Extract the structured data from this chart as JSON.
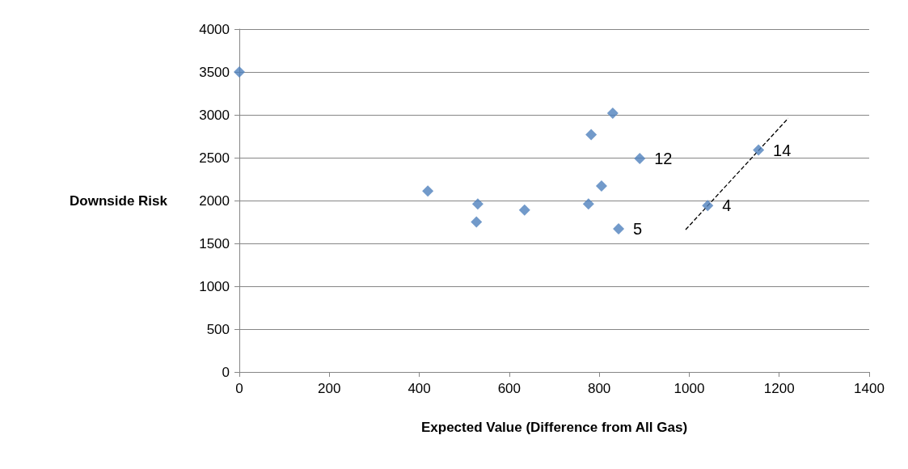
{
  "chart_data": {
    "type": "scatter",
    "xlabel": "Expected Value (Difference from All Gas)",
    "ylabel": "Downside Risk",
    "xlim": [
      0,
      1400
    ],
    "xticks": [
      0,
      200,
      400,
      600,
      800,
      1000,
      1200,
      1400
    ],
    "ylim": [
      0,
      4000
    ],
    "yticks": [
      0,
      500,
      1000,
      1500,
      2000,
      2500,
      3000,
      3500,
      4000
    ],
    "grid": "y",
    "marker": "diamond",
    "series": [
      {
        "color": "#4f81bd",
        "x": [
          0,
          419,
          530,
          527,
          634,
          782,
          830,
          776,
          805,
          843,
          890,
          1041,
          1154
        ],
        "values": [
          3500,
          2110,
          1960,
          1750,
          1890,
          2770,
          3020,
          1960,
          2170,
          1670,
          2490,
          1940,
          2590
        ]
      },
      {
        "type": "line",
        "color": "#000000",
        "line_style": "dashed",
        "marker": "none",
        "x": [
          992,
          1220
        ],
        "values": [
          1660,
          2960
        ]
      }
    ],
    "annotations": [
      {
        "text": "12",
        "x": 890,
        "y": 2490
      },
      {
        "text": "14",
        "x": 1154,
        "y": 2585
      },
      {
        "text": "4",
        "x": 1041,
        "y": 1940
      },
      {
        "text": "5",
        "x": 843,
        "y": 1670
      }
    ]
  }
}
